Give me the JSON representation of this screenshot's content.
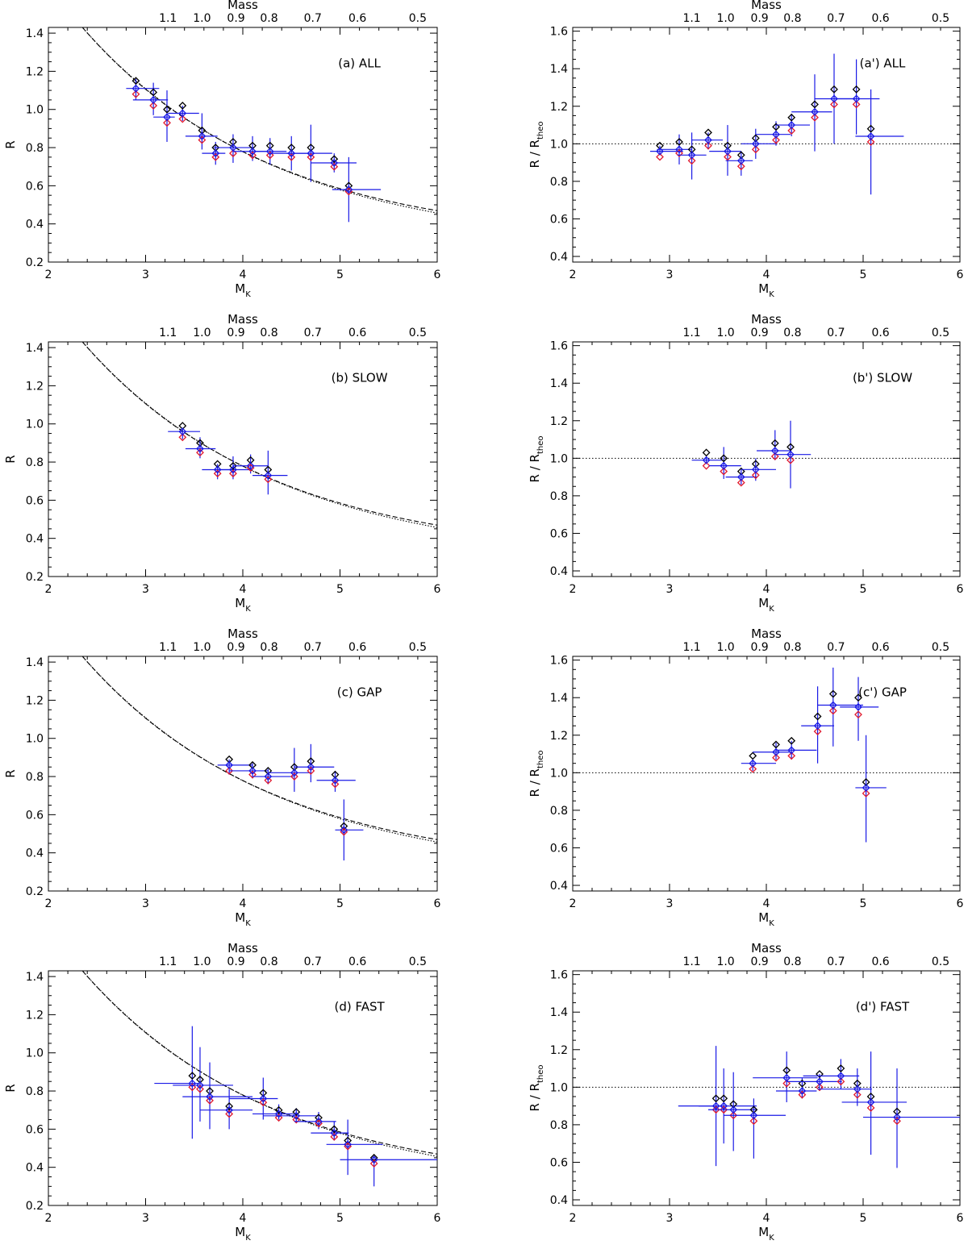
{
  "mass_axis": {
    "label": "Mass",
    "ticks": [
      {
        "label": "1.1",
        "mk": 3.23
      },
      {
        "label": "1.0",
        "mk": 3.58
      },
      {
        "label": "0.9",
        "mk": 3.93
      },
      {
        "label": "0.8",
        "mk": 4.27
      },
      {
        "label": "0.7",
        "mk": 4.72
      },
      {
        "label": "0.6",
        "mk": 5.18
      },
      {
        "label": "0.5",
        "mk": 5.8
      }
    ]
  },
  "xaxis": {
    "label_main": "M",
    "label_sub": "K",
    "ticks": [
      "2",
      "3",
      "4",
      "5",
      "6"
    ]
  },
  "colors": {
    "black_marker": "#000000",
    "red_marker": "#e0192e",
    "blue": "#1a1ae6",
    "curve": "#000000"
  },
  "chart_data": [
    {
      "type": "scatter",
      "label": "(a) ALL",
      "ylabel": "R",
      "xlim": [
        2,
        6
      ],
      "ylim": [
        0.2,
        1.43
      ],
      "yticks": [
        "0.2",
        "0.4",
        "0.6",
        "0.8",
        "1.0",
        "1.2",
        "1.4"
      ],
      "reference": "curves",
      "points": [
        {
          "x": 2.9,
          "xlo": 2.8,
          "xhi": 3.14,
          "yblack": 1.15,
          "yred": 1.08,
          "yblue": 1.11,
          "ylo": 1.05,
          "yhi": 1.16
        },
        {
          "x": 3.08,
          "xlo": 2.87,
          "xhi": 3.23,
          "yblack": 1.09,
          "yred": 1.02,
          "yblue": 1.05,
          "ylo": 0.97,
          "yhi": 1.14
        },
        {
          "x": 3.22,
          "xlo": 3.08,
          "xhi": 3.3,
          "yblack": 1.0,
          "yred": 0.93,
          "yblue": 0.96,
          "ylo": 0.83,
          "yhi": 1.1
        },
        {
          "x": 3.38,
          "xlo": 3.23,
          "xhi": 3.55,
          "yblack": 1.02,
          "yred": 0.95,
          "yblue": 0.98,
          "ylo": 0.94,
          "yhi": 1.02
        },
        {
          "x": 3.58,
          "xlo": 3.41,
          "xhi": 3.74,
          "yblack": 0.89,
          "yred": 0.84,
          "yblue": 0.86,
          "ylo": 0.79,
          "yhi": 0.98
        },
        {
          "x": 3.72,
          "xlo": 3.58,
          "xhi": 3.82,
          "yblack": 0.8,
          "yred": 0.75,
          "yblue": 0.77,
          "ylo": 0.71,
          "yhi": 0.83
        },
        {
          "x": 3.9,
          "xlo": 3.7,
          "xhi": 4.12,
          "yblack": 0.83,
          "yred": 0.77,
          "yblue": 0.8,
          "ylo": 0.72,
          "yhi": 0.87
        },
        {
          "x": 4.1,
          "xlo": 3.9,
          "xhi": 4.25,
          "yblack": 0.81,
          "yred": 0.76,
          "yblue": 0.78,
          "ylo": 0.73,
          "yhi": 0.86
        },
        {
          "x": 4.28,
          "xlo": 4.12,
          "xhi": 4.45,
          "yblack": 0.81,
          "yred": 0.76,
          "yblue": 0.78,
          "ylo": 0.71,
          "yhi": 0.85
        },
        {
          "x": 4.5,
          "xlo": 4.28,
          "xhi": 4.68,
          "yblack": 0.8,
          "yred": 0.75,
          "yblue": 0.77,
          "ylo": 0.68,
          "yhi": 0.86
        },
        {
          "x": 4.7,
          "xlo": 4.45,
          "xhi": 4.92,
          "yblack": 0.8,
          "yred": 0.75,
          "yblue": 0.77,
          "ylo": 0.62,
          "yhi": 0.92
        },
        {
          "x": 4.94,
          "xlo": 4.7,
          "xhi": 5.17,
          "yblack": 0.74,
          "yred": 0.7,
          "yblue": 0.72,
          "ylo": 0.67,
          "yhi": 0.77
        },
        {
          "x": 5.09,
          "xlo": 4.92,
          "xhi": 5.42,
          "yblack": 0.6,
          "yred": 0.57,
          "yblue": 0.58,
          "ylo": 0.41,
          "yhi": 0.75
        }
      ]
    },
    {
      "type": "scatter",
      "label": "(a') ALL",
      "ylabel": "R / R",
      "ylabel_sub": "theo",
      "xlim": [
        2,
        6
      ],
      "ylim": [
        0.37,
        1.62
      ],
      "yticks": [
        "0.4",
        "0.6",
        "0.8",
        "1.0",
        "1.2",
        "1.4",
        "1.6"
      ],
      "reference": "hline",
      "points": [
        {
          "x": 2.9,
          "xlo": 2.8,
          "xhi": 3.14,
          "yblack": 0.99,
          "yred": 0.93,
          "yblue": 0.96,
          "ylo": 0.94,
          "yhi": 0.99
        },
        {
          "x": 3.1,
          "xlo": 2.87,
          "xhi": 3.23,
          "yblack": 1.01,
          "yred": 0.95,
          "yblue": 0.97,
          "ylo": 0.89,
          "yhi": 1.05
        },
        {
          "x": 3.23,
          "xlo": 3.08,
          "xhi": 3.38,
          "yblack": 0.97,
          "yred": 0.91,
          "yblue": 0.94,
          "ylo": 0.81,
          "yhi": 1.06
        },
        {
          "x": 3.4,
          "xlo": 3.23,
          "xhi": 3.55,
          "yblack": 1.06,
          "yred": 0.99,
          "yblue": 1.02,
          "ylo": 0.97,
          "yhi": 1.06
        },
        {
          "x": 3.6,
          "xlo": 3.41,
          "xhi": 3.74,
          "yblack": 0.99,
          "yred": 0.93,
          "yblue": 0.96,
          "ylo": 0.83,
          "yhi": 1.1
        },
        {
          "x": 3.74,
          "xlo": 3.58,
          "xhi": 3.86,
          "yblack": 0.94,
          "yred": 0.88,
          "yblue": 0.91,
          "ylo": 0.83,
          "yhi": 0.96
        },
        {
          "x": 3.89,
          "xlo": 3.74,
          "xhi": 4.1,
          "yblack": 1.03,
          "yred": 0.97,
          "yblue": 1.0,
          "ylo": 0.92,
          "yhi": 1.08
        },
        {
          "x": 4.1,
          "xlo": 3.89,
          "xhi": 4.25,
          "yblack": 1.09,
          "yred": 1.02,
          "yblue": 1.05,
          "ylo": 0.99,
          "yhi": 1.12
        },
        {
          "x": 4.26,
          "xlo": 4.1,
          "xhi": 4.45,
          "yblack": 1.14,
          "yred": 1.07,
          "yblue": 1.1,
          "ylo": 1.04,
          "yhi": 1.16
        },
        {
          "x": 4.5,
          "xlo": 4.26,
          "xhi": 4.68,
          "yblack": 1.21,
          "yred": 1.14,
          "yblue": 1.17,
          "ylo": 0.96,
          "yhi": 1.37
        },
        {
          "x": 4.7,
          "xlo": 4.5,
          "xhi": 4.92,
          "yblack": 1.29,
          "yred": 1.21,
          "yblue": 1.24,
          "ylo": 1.0,
          "yhi": 1.48
        },
        {
          "x": 4.93,
          "xlo": 4.7,
          "xhi": 5.17,
          "yblack": 1.29,
          "yred": 1.21,
          "yblue": 1.24,
          "ylo": 1.05,
          "yhi": 1.45
        },
        {
          "x": 5.08,
          "xlo": 4.92,
          "xhi": 5.42,
          "yblack": 1.08,
          "yred": 1.01,
          "yblue": 1.04,
          "ylo": 0.73,
          "yhi": 1.29
        }
      ]
    },
    {
      "type": "scatter",
      "label": "(b) SLOW",
      "ylabel": "R",
      "xlim": [
        2,
        6
      ],
      "ylim": [
        0.2,
        1.43
      ],
      "yticks": [
        "0.2",
        "0.4",
        "0.6",
        "0.8",
        "1.0",
        "1.2",
        "1.4"
      ],
      "reference": "curves",
      "points": [
        {
          "x": 3.38,
          "xlo": 3.23,
          "xhi": 3.56,
          "yblack": 0.99,
          "yred": 0.93,
          "yblue": 0.96,
          "ylo": 0.92,
          "yhi": 0.97
        },
        {
          "x": 3.56,
          "xlo": 3.41,
          "xhi": 3.72,
          "yblack": 0.9,
          "yred": 0.85,
          "yblue": 0.87,
          "ylo": 0.82,
          "yhi": 0.93
        },
        {
          "x": 3.74,
          "xlo": 3.58,
          "xhi": 3.9,
          "yblack": 0.79,
          "yred": 0.74,
          "yblue": 0.76,
          "ylo": 0.71,
          "yhi": 0.79
        },
        {
          "x": 3.9,
          "xlo": 3.74,
          "xhi": 4.1,
          "yblack": 0.78,
          "yred": 0.74,
          "yblue": 0.76,
          "ylo": 0.71,
          "yhi": 0.83
        },
        {
          "x": 4.08,
          "xlo": 3.9,
          "xhi": 4.26,
          "yblack": 0.81,
          "yred": 0.77,
          "yblue": 0.78,
          "ylo": 0.74,
          "yhi": 0.84
        },
        {
          "x": 4.26,
          "xlo": 4.1,
          "xhi": 4.46,
          "yblack": 0.76,
          "yred": 0.71,
          "yblue": 0.73,
          "ylo": 0.63,
          "yhi": 0.86
        }
      ]
    },
    {
      "type": "scatter",
      "label": "(b') SLOW",
      "ylabel": "R / R",
      "ylabel_sub": "theo",
      "xlim": [
        2,
        6
      ],
      "ylim": [
        0.37,
        1.62
      ],
      "yticks": [
        "0.4",
        "0.6",
        "0.8",
        "1.0",
        "1.2",
        "1.4",
        "1.6"
      ],
      "reference": "hline",
      "points": [
        {
          "x": 3.38,
          "xlo": 3.23,
          "xhi": 3.55,
          "yblack": 1.03,
          "yred": 0.96,
          "yblue": 0.99,
          "ylo": 0.97,
          "yhi": 1.01
        },
        {
          "x": 3.56,
          "xlo": 3.41,
          "xhi": 3.74,
          "yblack": 1.0,
          "yred": 0.93,
          "yblue": 0.96,
          "ylo": 0.89,
          "yhi": 1.06
        },
        {
          "x": 3.74,
          "xlo": 3.58,
          "xhi": 3.9,
          "yblack": 0.93,
          "yred": 0.87,
          "yblue": 0.9,
          "ylo": 0.86,
          "yhi": 0.94
        },
        {
          "x": 3.89,
          "xlo": 3.74,
          "xhi": 4.1,
          "yblack": 0.97,
          "yred": 0.91,
          "yblue": 0.94,
          "ylo": 0.88,
          "yhi": 1.0
        },
        {
          "x": 4.09,
          "xlo": 3.9,
          "xhi": 4.26,
          "yblack": 1.08,
          "yred": 1.01,
          "yblue": 1.04,
          "ylo": 0.99,
          "yhi": 1.15
        },
        {
          "x": 4.25,
          "xlo": 4.1,
          "xhi": 4.46,
          "yblack": 1.06,
          "yred": 0.99,
          "yblue": 1.02,
          "ylo": 0.84,
          "yhi": 1.2
        }
      ]
    },
    {
      "type": "scatter",
      "label": "(c) GAP",
      "ylabel": "R",
      "xlim": [
        2,
        6
      ],
      "ylim": [
        0.2,
        1.43
      ],
      "yticks": [
        "0.2",
        "0.4",
        "0.6",
        "0.8",
        "1.0",
        "1.2",
        "1.4"
      ],
      "reference": "curves",
      "points": [
        {
          "x": 3.86,
          "xlo": 3.74,
          "xhi": 4.1,
          "yblack": 0.89,
          "yred": 0.83,
          "yblue": 0.86,
          "ylo": 0.81,
          "yhi": 0.89
        },
        {
          "x": 4.1,
          "xlo": 3.86,
          "xhi": 4.26,
          "yblack": 0.86,
          "yred": 0.81,
          "yblue": 0.83,
          "ylo": 0.79,
          "yhi": 0.87
        },
        {
          "x": 4.26,
          "xlo": 4.1,
          "xhi": 4.52,
          "yblack": 0.83,
          "yred": 0.78,
          "yblue": 0.8,
          "ylo": 0.76,
          "yhi": 0.84
        },
        {
          "x": 4.53,
          "xlo": 4.26,
          "xhi": 4.7,
          "yblack": 0.85,
          "yred": 0.8,
          "yblue": 0.82,
          "ylo": 0.72,
          "yhi": 0.95
        },
        {
          "x": 4.7,
          "xlo": 4.53,
          "xhi": 4.94,
          "yblack": 0.88,
          "yred": 0.83,
          "yblue": 0.85,
          "ylo": 0.77,
          "yhi": 0.97
        },
        {
          "x": 4.95,
          "xlo": 4.76,
          "xhi": 5.16,
          "yblack": 0.81,
          "yred": 0.76,
          "yblue": 0.78,
          "ylo": 0.72,
          "yhi": 0.83
        },
        {
          "x": 5.04,
          "xlo": 4.95,
          "xhi": 5.24,
          "yblack": 0.54,
          "yred": 0.51,
          "yblue": 0.52,
          "ylo": 0.36,
          "yhi": 0.68
        }
      ]
    },
    {
      "type": "scatter",
      "label": "(c') GAP",
      "ylabel": "R / R",
      "ylabel_sub": "theo",
      "xlim": [
        2,
        6
      ],
      "ylim": [
        0.37,
        1.62
      ],
      "yticks": [
        "0.4",
        "0.6",
        "0.8",
        "1.0",
        "1.2",
        "1.4",
        "1.6"
      ],
      "reference": "hline",
      "points": [
        {
          "x": 3.86,
          "xlo": 3.74,
          "xhi": 4.1,
          "yblack": 1.09,
          "yred": 1.02,
          "yblue": 1.05,
          "ylo": 1.01,
          "yhi": 1.07
        },
        {
          "x": 4.1,
          "xlo": 3.86,
          "xhi": 4.26,
          "yblack": 1.15,
          "yred": 1.08,
          "yblue": 1.11,
          "ylo": 1.07,
          "yhi": 1.16
        },
        {
          "x": 4.26,
          "xlo": 4.1,
          "xhi": 4.52,
          "yblack": 1.17,
          "yred": 1.09,
          "yblue": 1.12,
          "ylo": 1.07,
          "yhi": 1.17
        },
        {
          "x": 4.53,
          "xlo": 4.36,
          "xhi": 4.7,
          "yblack": 1.3,
          "yred": 1.22,
          "yblue": 1.25,
          "ylo": 1.05,
          "yhi": 1.46
        },
        {
          "x": 4.69,
          "xlo": 4.53,
          "xhi": 5.0,
          "yblack": 1.42,
          "yred": 1.33,
          "yblue": 1.36,
          "ylo": 1.14,
          "yhi": 1.56
        },
        {
          "x": 4.95,
          "xlo": 4.76,
          "xhi": 5.16,
          "yblack": 1.4,
          "yred": 1.31,
          "yblue": 1.35,
          "ylo": 1.17,
          "yhi": 1.51
        },
        {
          "x": 5.03,
          "xlo": 4.92,
          "xhi": 5.24,
          "yblack": 0.95,
          "yred": 0.89,
          "yblue": 0.92,
          "ylo": 0.63,
          "yhi": 1.2
        }
      ]
    },
    {
      "type": "scatter",
      "label": "(d) FAST",
      "ylabel": "R",
      "xlim": [
        2,
        6
      ],
      "ylim": [
        0.2,
        1.43
      ],
      "yticks": [
        "0.2",
        "0.4",
        "0.6",
        "0.8",
        "1.0",
        "1.2",
        "1.4"
      ],
      "reference": "curves",
      "points": [
        {
          "x": 3.48,
          "xlo": 3.09,
          "xhi": 3.55,
          "yblack": 0.88,
          "yred": 0.82,
          "yblue": 0.84,
          "ylo": 0.55,
          "yhi": 1.14
        },
        {
          "x": 3.56,
          "xlo": 3.28,
          "xhi": 3.9,
          "yblack": 0.86,
          "yred": 0.81,
          "yblue": 0.83,
          "ylo": 0.64,
          "yhi": 1.03
        },
        {
          "x": 3.66,
          "xlo": 3.38,
          "xhi": 4.1,
          "yblack": 0.8,
          "yred": 0.75,
          "yblue": 0.77,
          "ylo": 0.6,
          "yhi": 0.95
        },
        {
          "x": 3.86,
          "xlo": 3.56,
          "xhi": 4.1,
          "yblack": 0.72,
          "yred": 0.68,
          "yblue": 0.7,
          "ylo": 0.6,
          "yhi": 0.81
        },
        {
          "x": 4.21,
          "xlo": 3.86,
          "xhi": 4.36,
          "yblack": 0.79,
          "yred": 0.74,
          "yblue": 0.76,
          "ylo": 0.65,
          "yhi": 0.87
        },
        {
          "x": 4.37,
          "xlo": 4.1,
          "xhi": 4.52,
          "yblack": 0.7,
          "yred": 0.66,
          "yblue": 0.68,
          "ylo": 0.65,
          "yhi": 0.73
        },
        {
          "x": 4.55,
          "xlo": 4.21,
          "xhi": 4.76,
          "yblack": 0.69,
          "yred": 0.65,
          "yblue": 0.67,
          "ylo": 0.64,
          "yhi": 0.71
        },
        {
          "x": 4.78,
          "xlo": 4.53,
          "xhi": 4.96,
          "yblack": 0.66,
          "yred": 0.63,
          "yblue": 0.64,
          "ylo": 0.6,
          "yhi": 0.69
        },
        {
          "x": 4.94,
          "xlo": 4.7,
          "xhi": 5.09,
          "yblack": 0.6,
          "yred": 0.56,
          "yblue": 0.58,
          "ylo": 0.54,
          "yhi": 0.64
        },
        {
          "x": 5.08,
          "xlo": 4.86,
          "xhi": 5.44,
          "yblack": 0.54,
          "yred": 0.51,
          "yblue": 0.52,
          "ylo": 0.36,
          "yhi": 0.65
        },
        {
          "x": 5.35,
          "xlo": 5.0,
          "xhi": 6.0,
          "yblack": 0.45,
          "yred": 0.42,
          "yblue": 0.44,
          "ylo": 0.3,
          "yhi": 0.46
        }
      ]
    },
    {
      "type": "scatter",
      "label": "(d') FAST",
      "ylabel": "R / R",
      "ylabel_sub": "theo",
      "xlim": [
        2,
        6
      ],
      "ylim": [
        0.37,
        1.62
      ],
      "yticks": [
        "0.4",
        "0.6",
        "0.8",
        "1.0",
        "1.2",
        "1.4",
        "1.6"
      ],
      "reference": "hline",
      "points": [
        {
          "x": 3.48,
          "xlo": 3.09,
          "xhi": 3.55,
          "yblack": 0.94,
          "yred": 0.88,
          "yblue": 0.9,
          "ylo": 0.58,
          "yhi": 1.22
        },
        {
          "x": 3.56,
          "xlo": 3.3,
          "xhi": 3.9,
          "yblack": 0.94,
          "yred": 0.88,
          "yblue": 0.9,
          "ylo": 0.7,
          "yhi": 1.1
        },
        {
          "x": 3.66,
          "xlo": 3.4,
          "xhi": 3.9,
          "yblack": 0.91,
          "yred": 0.85,
          "yblue": 0.88,
          "ylo": 0.66,
          "yhi": 1.08
        },
        {
          "x": 3.87,
          "xlo": 3.56,
          "xhi": 4.2,
          "yblack": 0.88,
          "yred": 0.82,
          "yblue": 0.85,
          "ylo": 0.62,
          "yhi": 0.94
        },
        {
          "x": 4.21,
          "xlo": 3.86,
          "xhi": 4.53,
          "yblack": 1.09,
          "yred": 1.02,
          "yblue": 1.05,
          "ylo": 0.92,
          "yhi": 1.19
        },
        {
          "x": 4.37,
          "xlo": 4.1,
          "xhi": 4.52,
          "yblack": 1.02,
          "yred": 0.96,
          "yblue": 0.98,
          "ylo": 0.94,
          "yhi": 1.05
        },
        {
          "x": 4.55,
          "xlo": 4.21,
          "xhi": 4.78,
          "yblack": 1.07,
          "yred": 1.0,
          "yblue": 1.03,
          "ylo": 0.98,
          "yhi": 1.07
        },
        {
          "x": 4.77,
          "xlo": 4.38,
          "xhi": 4.96,
          "yblack": 1.1,
          "yred": 1.03,
          "yblue": 1.06,
          "ylo": 0.99,
          "yhi": 1.15
        },
        {
          "x": 4.94,
          "xlo": 4.53,
          "xhi": 5.09,
          "yblack": 1.02,
          "yred": 0.96,
          "yblue": 0.99,
          "ylo": 0.9,
          "yhi": 1.1
        },
        {
          "x": 5.08,
          "xlo": 4.78,
          "xhi": 5.45,
          "yblack": 0.95,
          "yred": 0.89,
          "yblue": 0.92,
          "ylo": 0.64,
          "yhi": 1.19
        },
        {
          "x": 5.35,
          "xlo": 5.0,
          "xhi": 6.0,
          "yblack": 0.87,
          "yred": 0.82,
          "yblue": 0.84,
          "ylo": 0.57,
          "yhi": 1.1
        }
      ]
    }
  ]
}
